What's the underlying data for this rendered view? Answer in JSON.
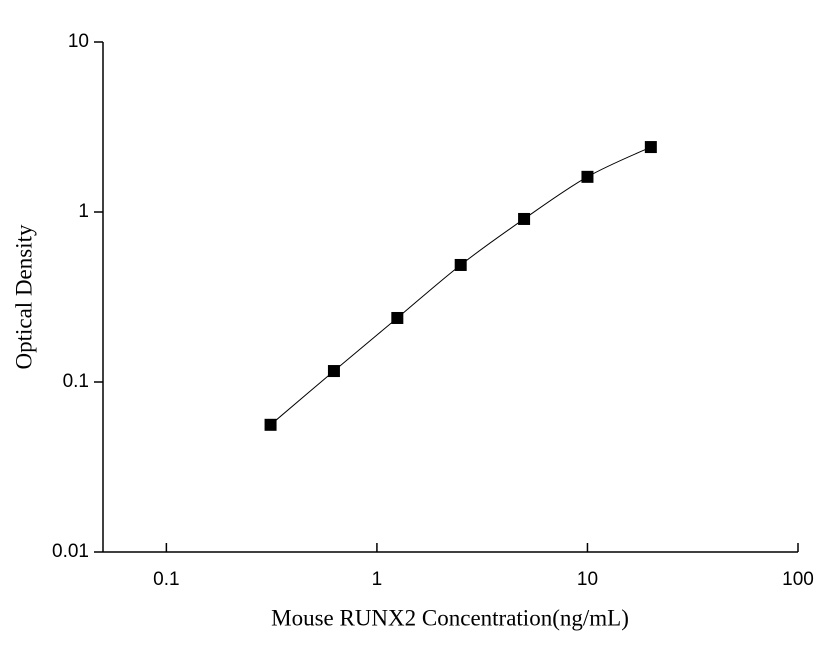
{
  "chart_data": {
    "type": "scatter",
    "x_label": "Mouse RUNX2 Concentration(ng/mL)",
    "y_label": "Optical Density",
    "x": [
      0.3125,
      0.625,
      1.25,
      2.5,
      5,
      10,
      20
    ],
    "series": [
      {
        "color": "#000000",
        "values": [
          0.056,
          0.116,
          0.238,
          0.488,
          0.91,
          1.61,
          2.41
        ]
      }
    ],
    "xlim": [
      0.05,
      100
    ],
    "ylim": [
      0.01,
      10
    ],
    "xticks": [
      0.1,
      1,
      10,
      100
    ],
    "yticks": [
      0.01,
      0.1,
      1,
      10
    ],
    "x_log": true,
    "y_log": true,
    "fit_curve": true
  }
}
